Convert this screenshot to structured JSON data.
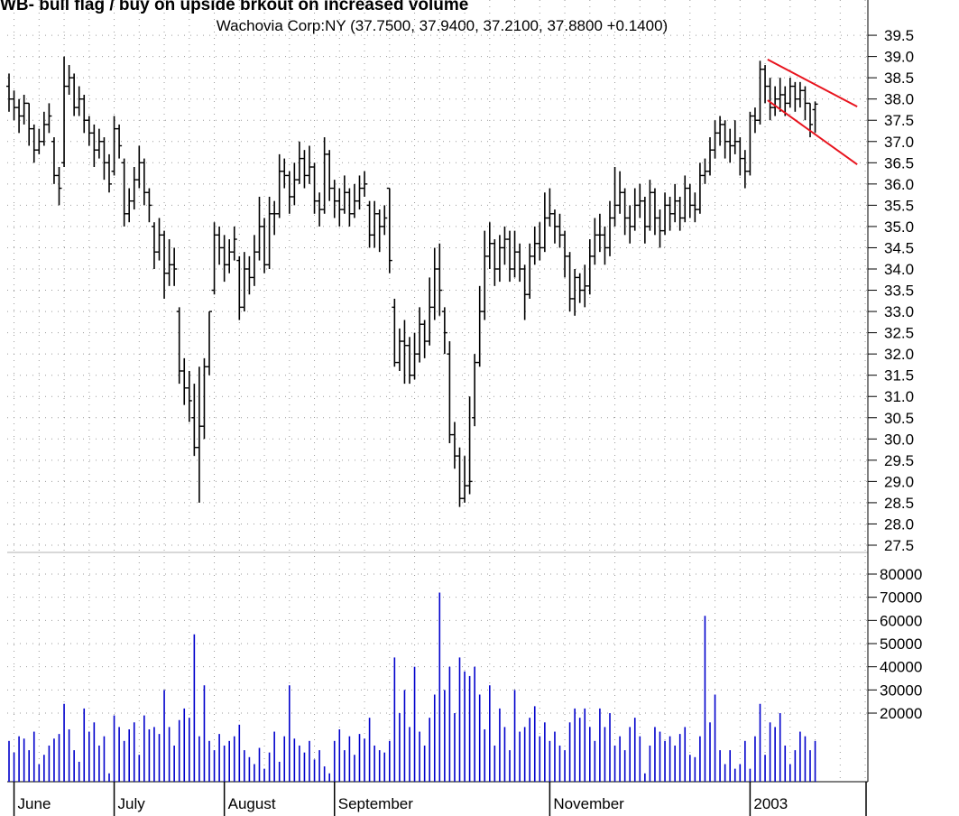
{
  "chart_data": [
    {
      "type": "ohlc",
      "title": "WB- bull flag / buy on upside brkout on increased volume",
      "subtitle": "Wachovia Corp:NY (37.7500, 37.9400, 37.2100, 37.8800 +0.1400)",
      "color": "#000000",
      "categories": [
        null,
        "June",
        null,
        null,
        null,
        null,
        null,
        null,
        null,
        null,
        null,
        null,
        null,
        null,
        null,
        null,
        null,
        null,
        null,
        null,
        null,
        "July",
        null,
        null,
        null,
        null,
        null,
        null,
        null,
        null,
        null,
        null,
        null,
        null,
        null,
        null,
        null,
        null,
        null,
        null,
        null,
        null,
        null,
        "August",
        null,
        null,
        null,
        null,
        null,
        null,
        null,
        null,
        null,
        null,
        null,
        null,
        null,
        null,
        null,
        null,
        null,
        null,
        null,
        null,
        null,
        "September",
        null,
        null,
        null,
        null,
        null,
        null,
        null,
        null,
        null,
        null,
        null,
        null,
        null,
        null,
        null,
        null,
        null,
        null,
        null,
        null,
        null,
        null,
        null,
        null,
        null,
        null,
        null,
        null,
        null,
        null,
        null,
        null,
        null,
        null,
        null,
        null,
        null,
        null,
        null,
        null,
        null,
        null,
        "November",
        null,
        null,
        null,
        null,
        null,
        null,
        null,
        null,
        null,
        null,
        null,
        null,
        null,
        null,
        null,
        null,
        null,
        null,
        null,
        null,
        null,
        null,
        null,
        null,
        null,
        null,
        null,
        null,
        null,
        null,
        null,
        null,
        null,
        null,
        null,
        null,
        null,
        null,
        null,
        "2003",
        null,
        null,
        null,
        null,
        null,
        null,
        null,
        null,
        null,
        null,
        null,
        null,
        null
      ],
      "open": [
        38.3,
        38.0,
        37.8,
        37.6,
        37.9,
        37.3,
        36.8,
        37.0,
        37.4,
        37.0,
        36.2,
        36.5,
        38.3,
        38.5,
        37.8,
        38.0,
        37.5,
        37.2,
        36.8,
        37.0,
        36.5,
        36.3,
        37.3,
        36.5,
        35.3,
        35.6,
        36.1,
        36.5,
        35.8,
        35.0,
        34.4,
        34.8,
        33.9,
        34.1,
        33.0,
        31.6,
        31.2,
        30.5,
        29.8,
        30.3,
        31.7,
        33.5,
        34.8,
        34.5,
        34.1,
        34.4,
        34.2,
        33.1,
        34.0,
        33.8,
        34.4,
        35.0,
        34.1,
        35.3,
        35.3,
        36.3,
        36.2,
        35.7,
        36.1,
        36.6,
        36.2,
        36.4,
        35.6,
        35.4,
        36.7,
        35.9,
        35.6,
        35.4,
        35.8,
        35.3,
        35.6,
        35.9,
        35.5,
        34.8,
        35.3,
        35.0,
        35.9,
        33.1,
        31.8,
        32.3,
        32.2,
        31.5,
        32.0,
        32.7,
        32.3,
        33.1,
        34.0,
        33.0,
        32.0,
        30.1,
        29.6,
        28.6,
        28.9,
        30.5,
        31.8,
        33.0,
        34.3,
        34.6,
        34.0,
        34.5,
        34.7,
        34.0,
        34.4,
        34.0,
        33.4,
        34.3,
        34.6,
        34.5,
        35.2,
        35.3,
        35.0,
        34.8,
        34.3,
        33.3,
        33.8,
        33.5,
        33.6,
        34.3,
        34.8,
        34.8,
        34.5,
        35.2,
        35.5,
        35.8,
        35.2,
        35.0,
        35.5,
        35.6,
        35.0,
        35.8,
        35.2,
        34.9,
        35.5,
        35.3,
        35.6,
        35.2,
        35.9,
        35.5,
        35.4,
        36.2,
        36.3,
        36.8,
        37.2,
        37.4,
        37.0,
        36.9,
        37.0,
        36.6,
        36.3,
        37.6,
        37.5,
        38.7,
        38.3,
        37.8,
        38.0,
        38.1,
        37.9,
        38.3,
        38.0,
        38.2,
        37.9,
        37.75
      ],
      "high": [
        38.6,
        38.2,
        38.0,
        38.1,
        37.9,
        37.4,
        37.3,
        37.7,
        37.9,
        37.1,
        36.4,
        39.0,
        38.8,
        38.6,
        38.3,
        38.1,
        37.6,
        37.4,
        37.3,
        37.1,
        36.7,
        37.6,
        37.4,
        36.6,
        35.9,
        36.4,
        36.9,
        36.6,
        35.9,
        35.1,
        35.2,
        34.9,
        34.7,
        34.5,
        33.1,
        31.9,
        31.6,
        31.3,
        31.7,
        31.9,
        33.0,
        35.1,
        35.0,
        34.8,
        34.7,
        35.0,
        34.3,
        34.4,
        34.3,
        34.8,
        35.7,
        35.2,
        35.7,
        35.6,
        36.7,
        36.6,
        36.3,
        36.5,
        37.0,
        36.8,
        36.9,
        36.5,
        35.8,
        37.1,
        36.8,
        36.1,
        35.9,
        36.2,
        35.9,
        36.0,
        36.2,
        36.3,
        35.6,
        35.6,
        35.4,
        35.5,
        35.9,
        33.3,
        32.6,
        32.8,
        32.4,
        32.5,
        33.1,
        32.8,
        33.8,
        34.5,
        34.6,
        33.1,
        32.3,
        30.4,
        29.8,
        29.6,
        31.0,
        32.0,
        33.6,
        34.9,
        35.1,
        34.7,
        34.8,
        35.0,
        34.9,
        34.9,
        34.6,
        34.1,
        34.6,
        35.0,
        35.1,
        35.8,
        35.9,
        35.4,
        35.3,
        34.9,
        34.4,
        34.0,
        33.9,
        34.1,
        34.7,
        35.2,
        35.3,
        35.0,
        35.6,
        36.4,
        36.3,
        35.9,
        35.5,
        35.9,
        36.0,
        35.7,
        36.1,
        35.9,
        35.4,
        35.8,
        35.7,
        36.0,
        35.7,
        36.2,
        36.0,
        35.8,
        36.5,
        36.6,
        37.1,
        37.5,
        37.6,
        37.5,
        37.3,
        37.5,
        37.1,
        36.8,
        37.7,
        37.8,
        38.9,
        38.8,
        38.5,
        38.3,
        38.5,
        38.3,
        38.5,
        38.4,
        38.4,
        38.3,
        37.9,
        37.94
      ],
      "low": [
        37.7,
        37.5,
        37.2,
        37.4,
        36.9,
        36.5,
        36.7,
        36.9,
        37.2,
        36.0,
        35.5,
        36.4,
        38.1,
        37.6,
        37.6,
        37.2,
        36.9,
        36.4,
        36.6,
        36.1,
        35.8,
        36.2,
        36.6,
        35.0,
        35.1,
        35.4,
        35.9,
        35.5,
        35.1,
        34.0,
        34.2,
        33.3,
        33.6,
        33.6,
        31.3,
        30.8,
        30.4,
        29.6,
        28.5,
        30.0,
        31.5,
        33.4,
        34.1,
        33.7,
        33.9,
        34.2,
        32.8,
        33.0,
        33.4,
        33.6,
        34.2,
        33.9,
        34.0,
        34.8,
        35.2,
        35.9,
        35.3,
        35.5,
        36.0,
        35.9,
        36.0,
        35.3,
        35.0,
        35.3,
        35.6,
        35.2,
        35.0,
        35.3,
        35.0,
        35.2,
        35.4,
        35.7,
        34.5,
        34.5,
        34.4,
        34.8,
        33.9,
        31.7,
        31.6,
        31.3,
        31.3,
        31.4,
        31.8,
        31.9,
        32.2,
        32.8,
        32.9,
        32.0,
        29.9,
        29.3,
        28.4,
        28.5,
        28.7,
        30.3,
        31.7,
        32.8,
        34.0,
        33.6,
        33.7,
        34.1,
        33.7,
        33.8,
        33.7,
        32.8,
        33.3,
        34.1,
        34.2,
        34.4,
        35.0,
        34.6,
        34.5,
        33.8,
        33.0,
        32.9,
        33.2,
        33.1,
        33.4,
        34.1,
        34.4,
        34.1,
        34.3,
        35.0,
        35.3,
        34.8,
        34.6,
        34.9,
        35.2,
        34.6,
        34.9,
        34.8,
        34.5,
        34.8,
        34.9,
        35.1,
        34.9,
        35.1,
        35.2,
        35.1,
        35.3,
        36.0,
        36.2,
        36.6,
        36.9,
        36.6,
        36.5,
        36.7,
        36.2,
        35.9,
        36.2,
        37.2,
        37.4,
        37.9,
        37.5,
        37.6,
        37.7,
        37.6,
        37.8,
        37.7,
        37.8,
        37.5,
        37.1,
        37.21
      ],
      "close": [
        38.0,
        37.8,
        37.6,
        37.9,
        37.3,
        36.8,
        37.0,
        37.4,
        37.6,
        36.2,
        35.9,
        38.3,
        38.5,
        37.8,
        38.0,
        37.5,
        37.2,
        36.8,
        37.0,
        36.5,
        36.0,
        37.3,
        36.9,
        35.3,
        35.6,
        36.1,
        36.5,
        35.8,
        35.5,
        34.4,
        34.8,
        33.9,
        34.1,
        34.0,
        31.6,
        31.2,
        30.9,
        29.8,
        30.3,
        31.7,
        33.0,
        34.8,
        34.5,
        34.1,
        34.4,
        34.7,
        33.1,
        34.0,
        33.8,
        34.4,
        35.0,
        34.1,
        35.3,
        35.3,
        36.3,
        36.2,
        35.7,
        36.1,
        36.6,
        36.2,
        36.4,
        35.6,
        35.4,
        36.7,
        35.9,
        35.6,
        35.4,
        35.8,
        35.3,
        35.6,
        35.9,
        36.0,
        34.8,
        35.3,
        35.0,
        35.2,
        34.2,
        31.8,
        32.3,
        32.2,
        31.5,
        32.0,
        32.7,
        32.3,
        33.1,
        34.0,
        33.5,
        32.5,
        30.1,
        29.6,
        28.6,
        28.9,
        29.0,
        31.8,
        33.0,
        34.3,
        34.6,
        34.0,
        34.5,
        34.7,
        34.0,
        34.4,
        34.0,
        33.4,
        34.3,
        34.6,
        34.5,
        35.2,
        35.3,
        35.0,
        34.8,
        34.3,
        33.3,
        33.8,
        33.5,
        33.6,
        34.3,
        34.8,
        34.8,
        34.5,
        35.2,
        35.5,
        35.8,
        35.2,
        35.0,
        35.5,
        35.6,
        35.0,
        35.8,
        35.2,
        34.9,
        35.5,
        35.3,
        35.6,
        35.2,
        35.9,
        35.5,
        35.4,
        36.2,
        36.3,
        36.8,
        37.2,
        37.4,
        37.0,
        36.9,
        37.0,
        36.6,
        36.3,
        37.6,
        37.5,
        38.7,
        38.3,
        37.8,
        38.0,
        38.1,
        37.9,
        38.3,
        38.0,
        38.2,
        37.9,
        37.4,
        37.88
      ],
      "ylim": [
        27.33,
        40.33
      ],
      "yticks": [
        27.5,
        {
          "value": 28,
          "label": "28.0"
        },
        28.5,
        {
          "value": 29,
          "label": "29.0"
        },
        29.5,
        {
          "value": 30,
          "label": "30.0"
        },
        30.5,
        {
          "value": 31,
          "label": "31.0"
        },
        31.5,
        {
          "value": 32,
          "label": "32.0"
        },
        32.5,
        {
          "value": 33,
          "label": "33.0"
        },
        33.5,
        {
          "value": 34,
          "label": "34.0"
        },
        34.5,
        {
          "value": 35,
          "label": "35.0"
        },
        35.5,
        {
          "value": 36,
          "label": "36.0"
        },
        36.5,
        {
          "value": 37,
          "label": "37.0"
        },
        37.5,
        {
          "value": 38,
          "label": "38.0"
        },
        38.5,
        {
          "value": 39,
          "label": "39.0"
        },
        39.5
      ],
      "grid": true,
      "trendline_color": "#e8141e",
      "trendlines": [
        {
          "x": [
            151.5,
            169.4
          ],
          "y": [
            38.93,
            37.82
          ]
        },
        {
          "x": [
            151.5,
            169.4
          ],
          "y": [
            37.97,
            36.46
          ]
        }
      ]
    },
    {
      "type": "bar",
      "color": "#0000cc",
      "values": [
        8000,
        3000,
        10000,
        9000,
        4000,
        12000,
        -2000,
        2000,
        6000,
        9000,
        11000,
        24000,
        13000,
        4000,
        -1000,
        22000,
        12000,
        16000,
        6000,
        10000,
        -6000,
        19000,
        14000,
        8000,
        13000,
        16000,
        2000,
        19000,
        13000,
        14000,
        11000,
        30000,
        14000,
        6000,
        17000,
        22000,
        18000,
        54000,
        10000,
        32000,
        8000,
        4000,
        11000,
        6000,
        8000,
        10000,
        15000,
        4000,
        1000,
        -2000,
        5000,
        -4000,
        3000,
        12000,
        -1000,
        10000,
        32000,
        9000,
        6000,
        3000,
        8000,
        0,
        4000,
        -3000,
        -6000,
        8000,
        13000,
        4000,
        10000,
        2000,
        11000,
        9000,
        18000,
        6000,
        4000,
        3000,
        8000,
        44000,
        20000,
        30000,
        14000,
        40000,
        12000,
        6000,
        18000,
        28000,
        72000,
        30000,
        40000,
        20000,
        44000,
        38000,
        36000,
        40000,
        28000,
        13000,
        32000,
        6000,
        22000,
        14000,
        4000,
        30000,
        12000,
        14000,
        18000,
        23000,
        10000,
        16000,
        8000,
        12000,
        6000,
        4000,
        16000,
        22000,
        18000,
        22000,
        14000,
        8000,
        22000,
        14000,
        20000,
        6000,
        10000,
        4000,
        14000,
        18000,
        10000,
        -6000,
        6000,
        14000,
        12000,
        8000,
        10000,
        6000,
        11000,
        14000,
        2000,
        1000,
        10000,
        62000,
        16000,
        28000,
        4000,
        -2000,
        4000,
        -4000,
        -2000,
        8000,
        -4000,
        10000,
        24000,
        2000,
        16000,
        14000,
        20000,
        6000,
        -2000,
        4000,
        12000,
        10000,
        4000,
        8000
      ],
      "ylim": [
        -9600,
        89350
      ],
      "yticks": [
        20000,
        30000,
        40000,
        50000,
        60000,
        70000,
        80000
      ],
      "grid": true
    }
  ]
}
